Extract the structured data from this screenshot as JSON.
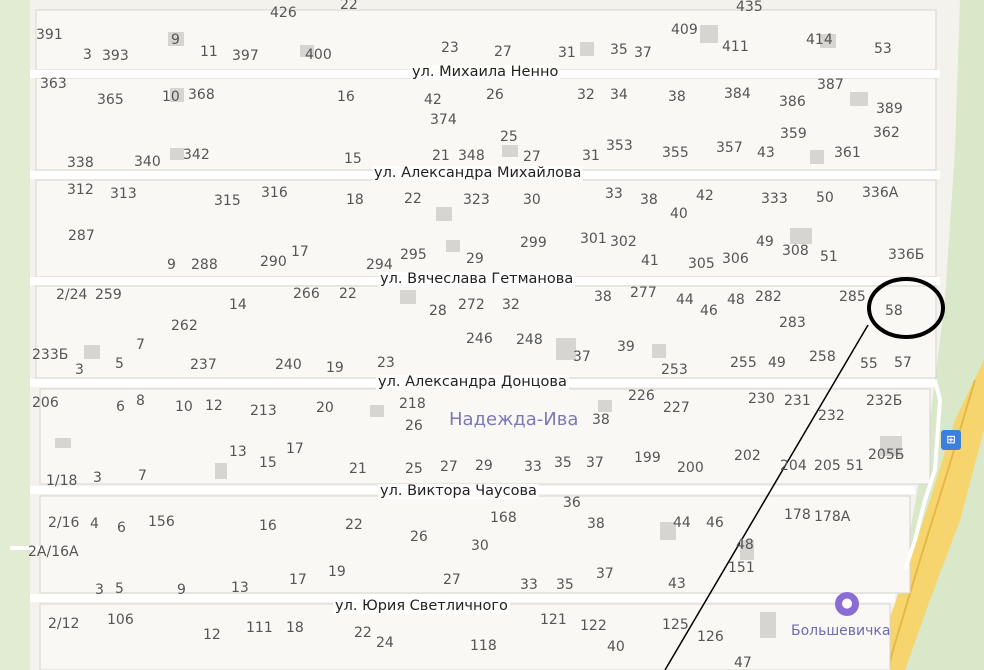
{
  "district": "Надежда-Ива",
  "poi": {
    "label": "Большевичка",
    "icon": "bed-icon"
  },
  "bus_stop": {
    "icon": "bus-stop-icon",
    "glyph": "⊞"
  },
  "streets": [
    "ул. Михаила Ненно",
    "ул. Александра Михайлова",
    "ул. Вячеслава Гетманова",
    "ул. Александра Донцова",
    "ул. Виктора Чаусова",
    "ул. Юрия Светличного"
  ],
  "annotation": {
    "circled_house": "58"
  },
  "houses": [
    "426",
    "22",
    "435",
    "391",
    "3",
    "393",
    "9",
    "11",
    "397",
    "400",
    "23",
    "27",
    "31",
    "35",
    "37",
    "409",
    "411",
    "414",
    "53",
    "363",
    "365",
    "10",
    "368",
    "16",
    "42",
    "374",
    "26",
    "32",
    "34",
    "38",
    "384",
    "386",
    "387",
    "389",
    "25",
    "359",
    "362",
    "338",
    "340",
    "342",
    "15",
    "21",
    "348",
    "27",
    "31",
    "353",
    "355",
    "357",
    "43",
    "361",
    "312",
    "313",
    "315",
    "316",
    "18",
    "22",
    "323",
    "30",
    "33",
    "38",
    "40",
    "42",
    "333",
    "50",
    "336А",
    "287",
    "9",
    "288",
    "290",
    "17",
    "294",
    "295",
    "29",
    "299",
    "301",
    "302",
    "41",
    "305",
    "306",
    "49",
    "308",
    "51",
    "336Б",
    "2/24",
    "259",
    "266",
    "22",
    "14",
    "28",
    "272",
    "32",
    "38",
    "277",
    "44",
    "46",
    "48",
    "282",
    "285",
    "262",
    "283",
    "246",
    "248",
    "39",
    "233Б",
    "7",
    "3",
    "5",
    "237",
    "240",
    "19",
    "23",
    "37",
    "253",
    "255",
    "49",
    "258",
    "55",
    "57",
    "206",
    "6",
    "8",
    "10",
    "12",
    "213",
    "20",
    "218",
    "26",
    "38",
    "226",
    "227",
    "230",
    "231",
    "232",
    "232Б",
    "13",
    "15",
    "17",
    "21",
    "25",
    "27",
    "29",
    "33",
    "35",
    "37",
    "199",
    "200",
    "202",
    "204",
    "205",
    "51",
    "205Б",
    "1/18",
    "3",
    "7",
    "36",
    "2/16",
    "4",
    "6",
    "156",
    "16",
    "22",
    "26",
    "168",
    "30",
    "38",
    "44",
    "46",
    "178",
    "178А",
    "48",
    "2А/16А",
    "151",
    "3",
    "5",
    "9",
    "13",
    "17",
    "19",
    "27",
    "33",
    "35",
    "37",
    "43",
    "2/12",
    "106",
    "12",
    "111",
    "18",
    "22",
    "24",
    "118",
    "121",
    "122",
    "40",
    "125",
    "126",
    "47"
  ]
}
